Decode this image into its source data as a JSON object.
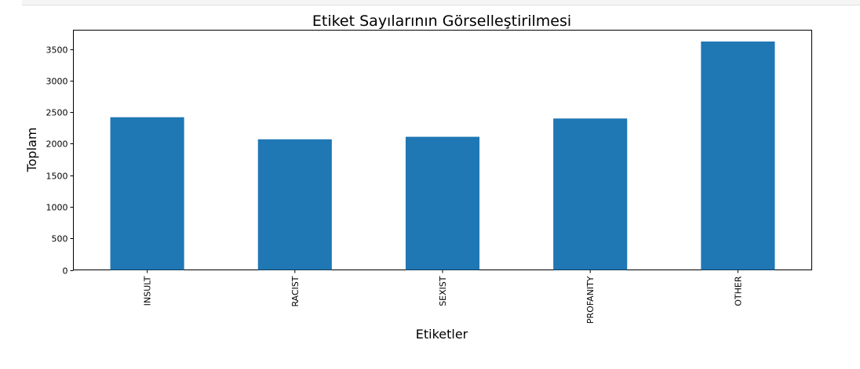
{
  "chart_data": {
    "type": "bar",
    "title": "Etiket Sayılarının Görselleştirilmesi",
    "xlabel": "Etiketler",
    "ylabel": "Toplam",
    "categories": [
      "INSULT",
      "RACIST",
      "SEXIST",
      "PROFANITY",
      "OTHER"
    ],
    "values": [
      2420,
      2070,
      2110,
      2400,
      3620
    ],
    "ylim": [
      0,
      3800
    ],
    "yticks": [
      0,
      500,
      1000,
      1500,
      2000,
      2500,
      3000,
      3500
    ],
    "grid": false,
    "bar_color": "#1f77b4"
  }
}
